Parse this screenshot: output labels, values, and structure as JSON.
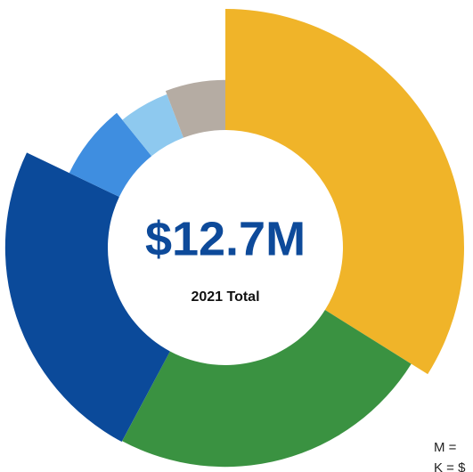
{
  "chart_data": {
    "type": "donut",
    "center_value": "$12.7M",
    "center_label": "2021 Total",
    "notes": [
      "M =",
      "K = $"
    ],
    "series": [
      {
        "color": "#f0b429",
        "values": [
          33.9
        ]
      },
      {
        "color": "#3a9241",
        "values": [
          23.9
        ]
      },
      {
        "color": "#0b4a9a",
        "values": [
          24.3
        ]
      },
      {
        "color": "#3f8ee0",
        "values": [
          7.1
        ]
      },
      {
        "color": "#8ec9ef",
        "values": [
          5.0
        ]
      },
      {
        "color": "#b5aca3",
        "values": [
          5.8
        ]
      }
    ]
  }
}
